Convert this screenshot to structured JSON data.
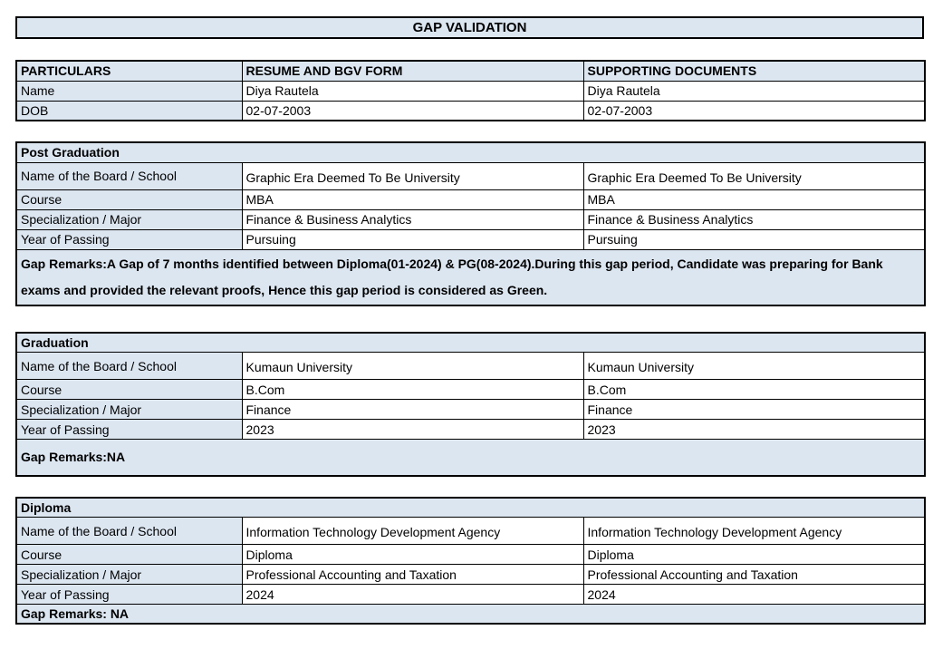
{
  "title": "GAP VALIDATION",
  "colors": {
    "header_bg": "#dce6f1",
    "border": "#000000",
    "cell_bg": "#ffffff"
  },
  "particulars_table": {
    "headers": [
      "PARTICULARS",
      "RESUME AND BGV FORM",
      "SUPPORTING DOCUMENTS"
    ],
    "rows": [
      {
        "label": "Name",
        "resume": "Diya Rautela",
        "supporting": "Diya Rautela"
      },
      {
        "label": "DOB",
        "resume": "02-07-2003",
        "supporting": "02-07-2003"
      }
    ]
  },
  "sections": [
    {
      "title": "Post Graduation",
      "rows": [
        {
          "label": "Name of the Board / School",
          "resume": "Graphic Era Deemed To Be University",
          "supporting": "Graphic Era Deemed To Be University"
        },
        {
          "label": "Course",
          "resume": "MBA",
          "supporting": "MBA"
        },
        {
          "label": "Specialization / Major",
          "resume": "Finance & Business Analytics",
          "supporting": "Finance & Business Analytics"
        },
        {
          "label": "Year of Passing",
          "resume": "Pursuing",
          "supporting": "Pursuing"
        }
      ],
      "gap_remarks": "Gap Remarks:A Gap of 7 months identified between Diploma(01-2024) & PG(08-2024).During this gap period, Candidate was preparing for Bank exams and provided the relevant proofs, Hence this gap period is considered as Green."
    },
    {
      "title": "Graduation",
      "rows": [
        {
          "label": "Name of the Board / School",
          "resume": "Kumaun University",
          "supporting": "Kumaun University"
        },
        {
          "label": "Course",
          "resume": "B.Com",
          "supporting": "B.Com"
        },
        {
          "label": "Specialization / Major",
          "resume": "Finance",
          "supporting": "Finance"
        },
        {
          "label": "Year of Passing",
          "resume": "2023",
          "supporting": "2023"
        }
      ],
      "gap_remarks": "Gap Remarks:NA"
    },
    {
      "title": "Diploma",
      "rows": [
        {
          "label": "Name of the Board / School",
          "resume": "Information Technology Development Agency",
          "supporting": "Information Technology Development Agency"
        },
        {
          "label": "Course",
          "resume": "Diploma",
          "supporting": "Diploma"
        },
        {
          "label": "Specialization / Major",
          "resume": "Professional Accounting and Taxation",
          "supporting": "Professional Accounting and Taxation"
        },
        {
          "label": "Year of Passing",
          "resume": "2024",
          "supporting": "2024"
        }
      ],
      "gap_remarks": "Gap Remarks: NA"
    }
  ]
}
